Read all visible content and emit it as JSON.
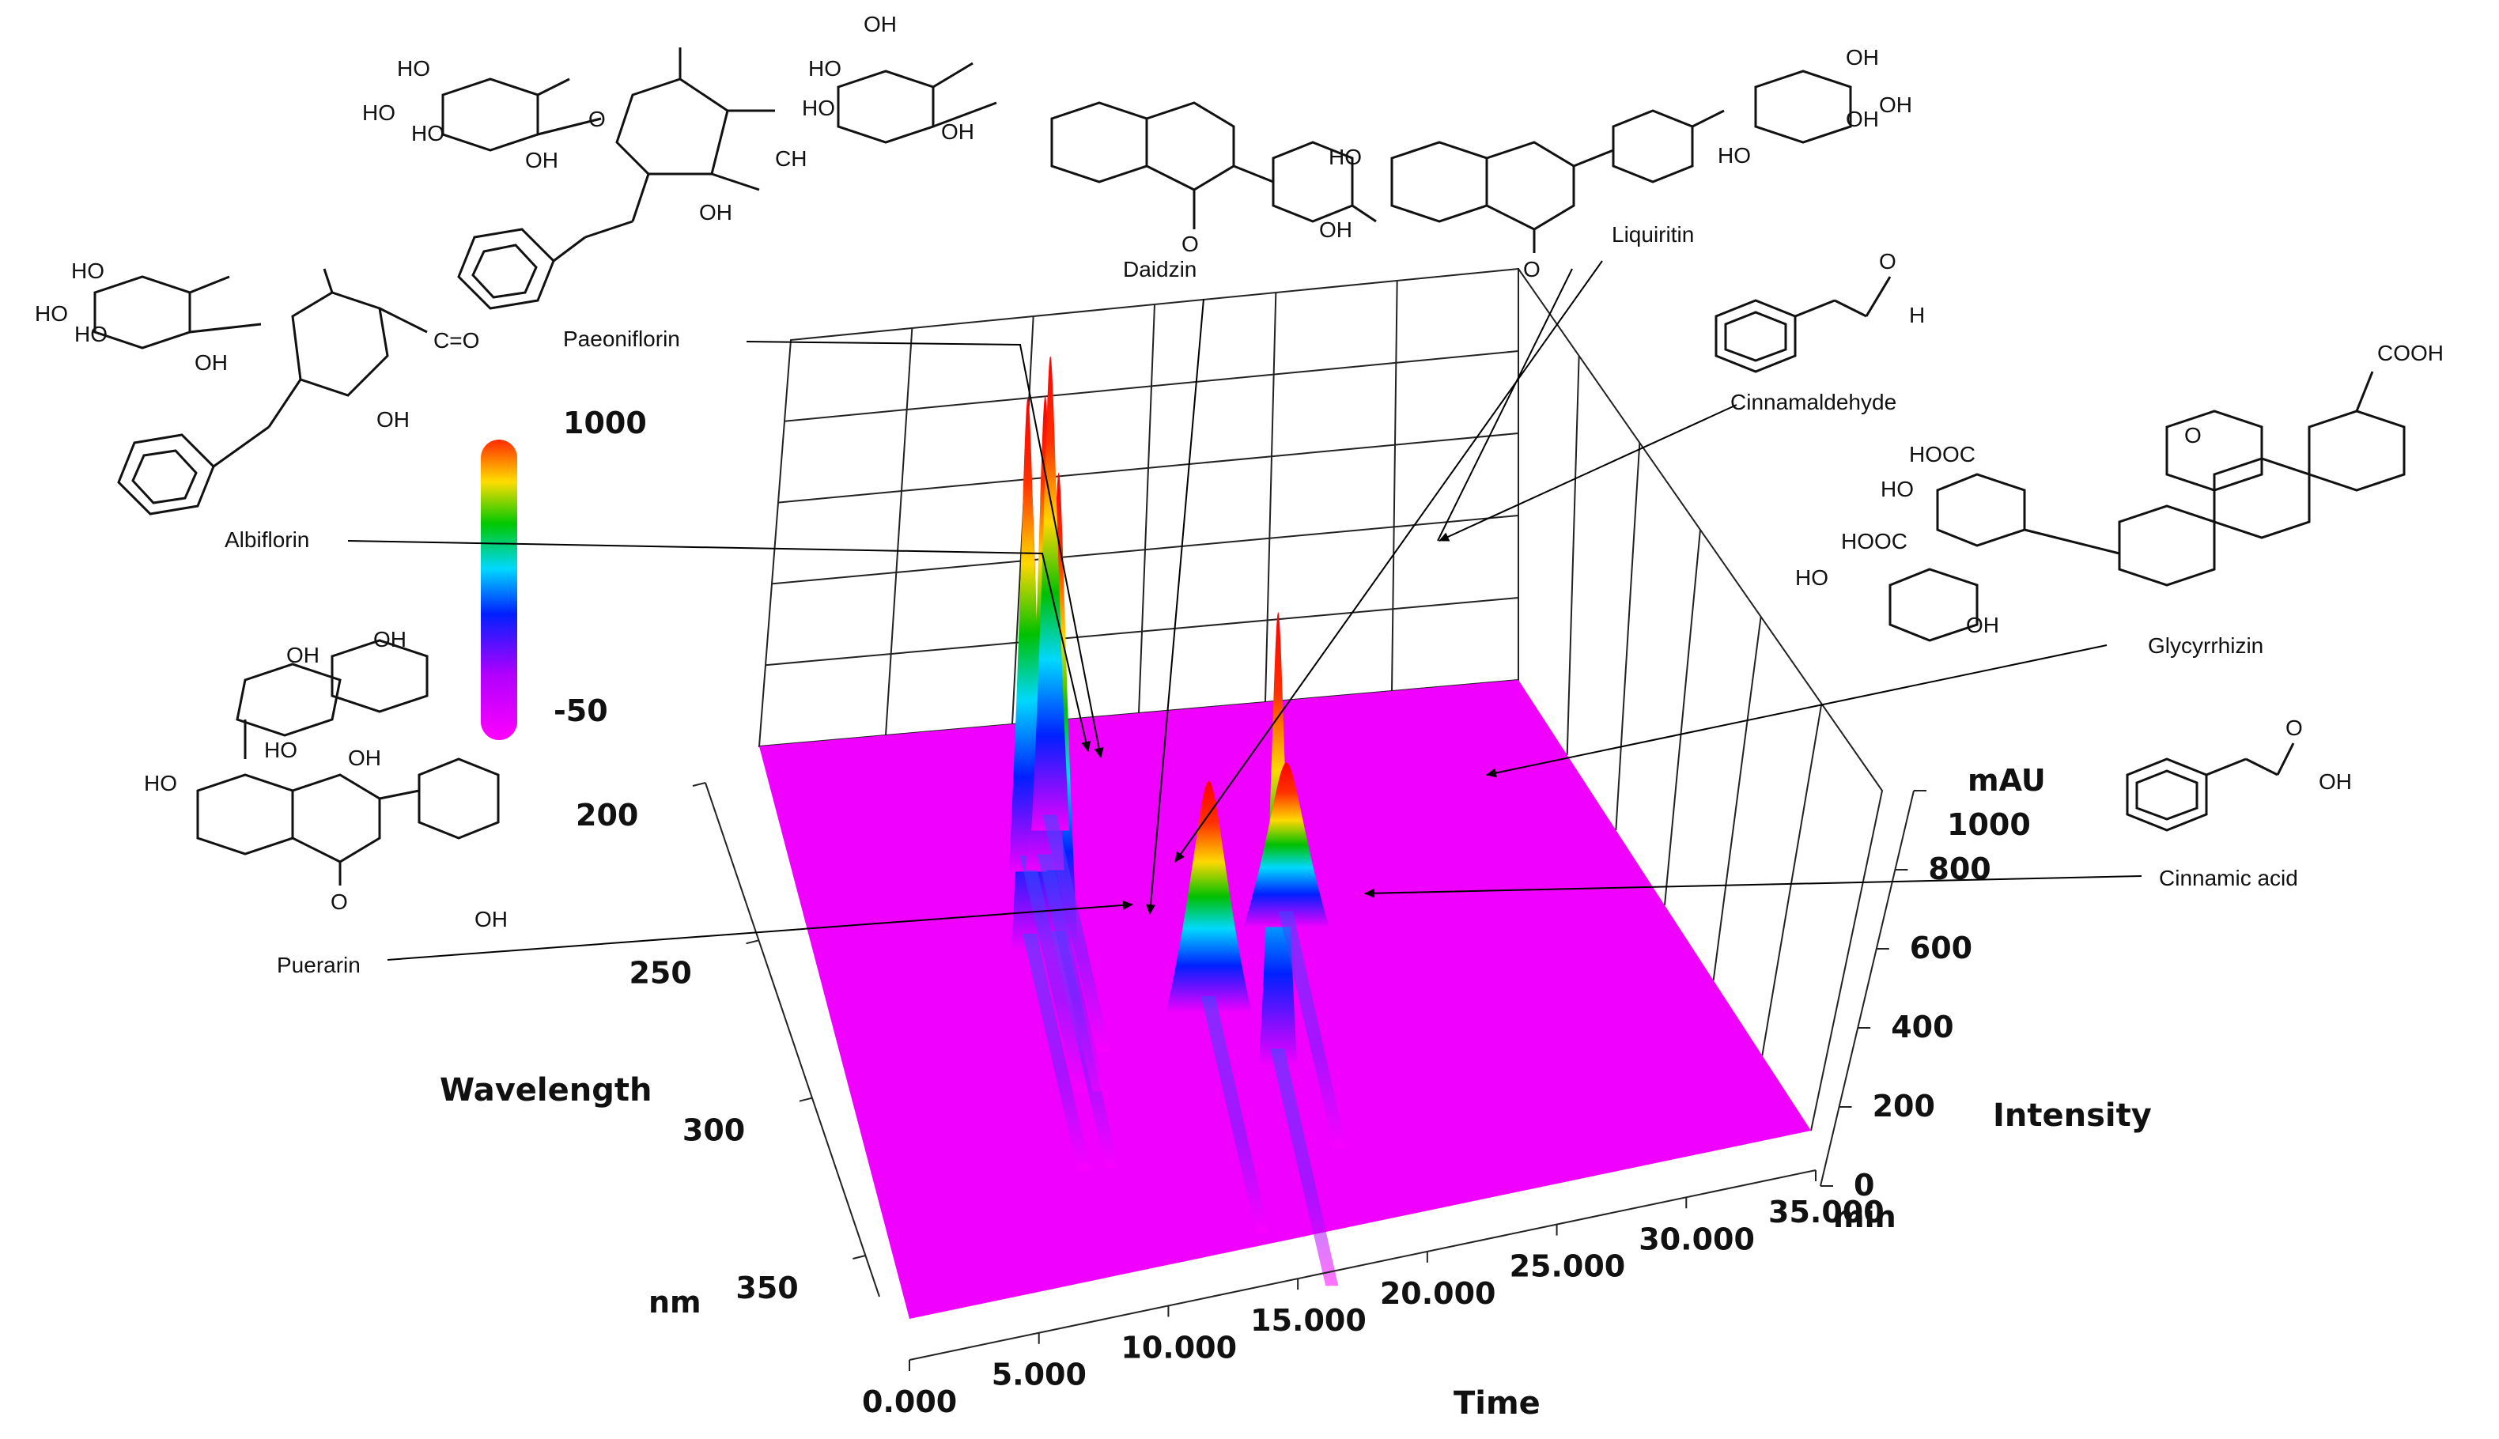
{
  "chart_data": {
    "type": "3d-surface",
    "title": "",
    "axes": {
      "time": {
        "label": "Time",
        "unit": "min",
        "range": [
          0,
          35
        ],
        "ticks": [
          "0.000",
          "5.000",
          "10.000",
          "15.000",
          "20.000",
          "25.000",
          "30.000",
          "35.000"
        ]
      },
      "wavelength": {
        "label": "Wavelength",
        "unit": "nm",
        "range": [
          200,
          350
        ],
        "ticks": [
          "200",
          "250",
          "300",
          "350"
        ]
      },
      "intensity": {
        "label": "Intensity",
        "unit": "mAU",
        "range": [
          0,
          1000
        ],
        "ticks": [
          "0",
          "200",
          "400",
          "600",
          "800",
          "1000"
        ]
      }
    },
    "colorbar": {
      "max_label": "1000",
      "min_label": "-50"
    },
    "peaks": [
      {
        "name": "Puerarin",
        "time": 10.2,
        "wavelength": 250,
        "intensity": 1000
      },
      {
        "name": "Daidzin",
        "time": 11.5,
        "wavelength": 250,
        "intensity": 1000
      },
      {
        "name": "Albiflorin",
        "time": 11.0,
        "wavelength": 230,
        "intensity": 1000
      },
      {
        "name": "Paeoniflorin",
        "time": 11.8,
        "wavelength": 230,
        "intensity": 1000
      },
      {
        "name": "Liquiritin",
        "time": 12.5,
        "wavelength": 220,
        "intensity": 1000
      },
      {
        "name": "Cinnamic acid",
        "time": 17.5,
        "wavelength": 270,
        "intensity": 450
      },
      {
        "name": "Cinnamaldehyde",
        "time": 20.0,
        "wavelength": 285,
        "intensity": 950
      },
      {
        "name": "Glycyrrhizin",
        "time": 22.0,
        "wavelength": 250,
        "intensity": 300
      }
    ]
  },
  "labels": {
    "paeoniflorin": "Paeoniflorin",
    "daidzin": "Daidzin",
    "liquiritin": "Liquiritin",
    "cinnamaldehyde": "Cinnamaldehyde",
    "albiflorin": "Albiflorin",
    "glycyrrhizin": "Glycyrrhizin",
    "cinnamic_acid": "Cinnamic acid",
    "puerarin": "Puerarin"
  },
  "colors": {
    "baseline": "#ff00ff",
    "peak_high": "#ff0000",
    "peak_mid": "#00c000",
    "peak_low": "#0000ff"
  }
}
